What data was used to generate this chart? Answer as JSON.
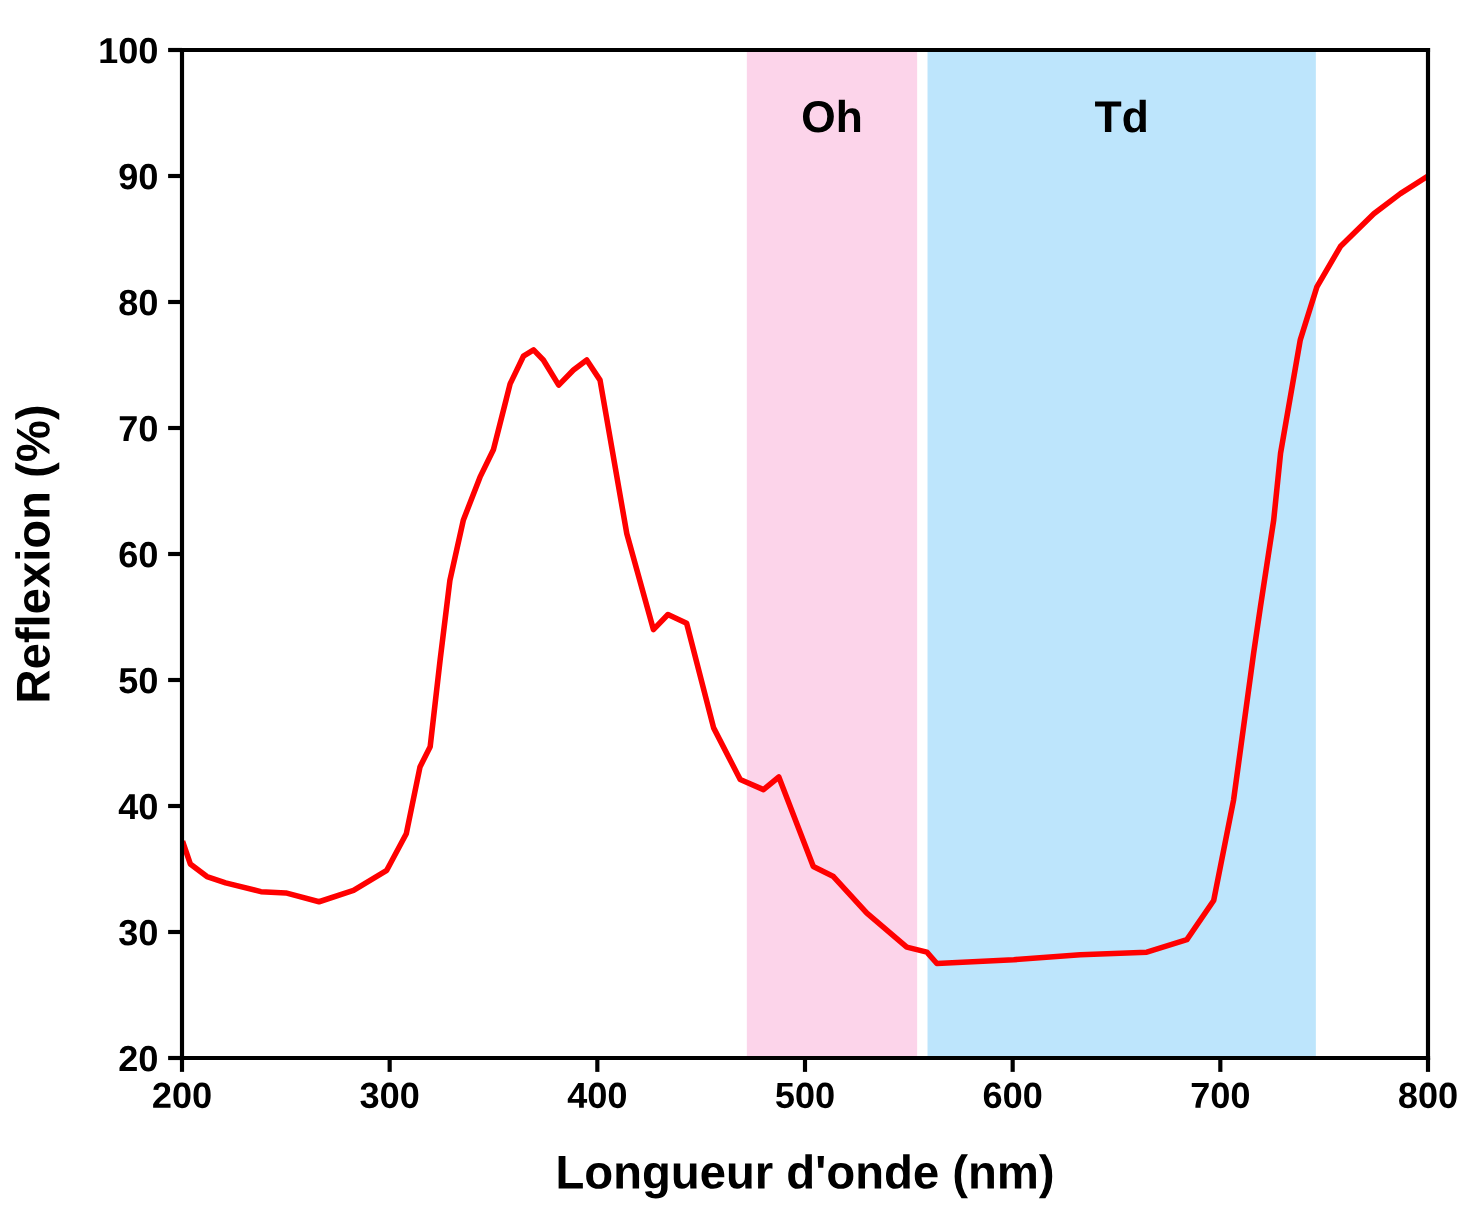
{
  "chart_data": {
    "type": "line",
    "xlabel": "Longueur d'onde (nm)",
    "ylabel": "Reflexion (%)",
    "xlim": [
      200,
      800
    ],
    "ylim": [
      20,
      100
    ],
    "xticks": [
      200,
      300,
      400,
      500,
      600,
      700,
      800
    ],
    "yticks": [
      20,
      30,
      40,
      50,
      60,
      70,
      80,
      90,
      100
    ],
    "grid": false,
    "legend": false,
    "marker": "none",
    "line_style": "solid",
    "bands": [
      {
        "axis": "x",
        "from": 472,
        "to": 554,
        "label": "Oh",
        "color": "#fab7dc"
      },
      {
        "axis": "x",
        "from": 559,
        "to": 746,
        "label": "Td",
        "color": "#91d4fa"
      }
    ],
    "series": [
      {
        "color": "#ff0000",
        "x": [
          200.7,
          204,
          212,
          221,
          238,
          250,
          266,
          282.6,
          298.6,
          308,
          314.6,
          319.5,
          324.3,
          329,
          335.5,
          343.5,
          350,
          358,
          364.4,
          369.3,
          374,
          381.4,
          388.5,
          394.9,
          401.3,
          414.2,
          427,
          434,
          443,
          456,
          468.8,
          480,
          487.4,
          504,
          513.7,
          529.8,
          549,
          558.7,
          563.5,
          600.5,
          632.6,
          664.6,
          683.9,
          696.8,
          706.4,
          716,
          719.3,
          725.7,
          729,
          738.5,
          746.5,
          757.8,
          773.9,
          786.7,
          800
        ],
        "values": [
          37.0,
          35.4,
          34.4,
          33.9,
          33.2,
          33.1,
          32.4,
          33.3,
          34.9,
          37.8,
          43.1,
          44.7,
          51.6,
          57.9,
          62.7,
          66.1,
          68.3,
          73.5,
          75.7,
          76.2,
          75.4,
          73.4,
          74.6,
          75.4,
          73.8,
          61.6,
          54.0,
          55.2,
          54.5,
          46.2,
          42.1,
          41.3,
          42.3,
          35.2,
          34.4,
          31.5,
          28.8,
          28.4,
          27.5,
          27.8,
          28.2,
          28.4,
          29.4,
          32.5,
          40.5,
          52.1,
          55.8,
          62.7,
          68.0,
          77.0,
          81.2,
          84.4,
          87.0,
          88.6,
          90.0
        ]
      }
    ]
  }
}
